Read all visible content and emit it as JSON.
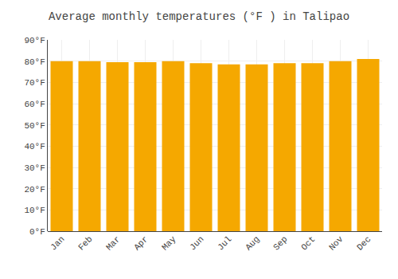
{
  "chart_data": {
    "type": "bar",
    "title": "Average monthly temperatures (°F ) in Talipao",
    "categories": [
      "Jan",
      "Feb",
      "Mar",
      "Apr",
      "May",
      "Jun",
      "Jul",
      "Aug",
      "Sep",
      "Oct",
      "Nov",
      "Dec"
    ],
    "values": [
      80,
      80,
      79.5,
      79.5,
      80,
      79,
      78.5,
      78.5,
      79,
      79,
      80,
      81
    ],
    "color": "#F5A800",
    "ylim": [
      0,
      90
    ],
    "yticks": [
      {
        "value": 0,
        "label": "0°F"
      },
      {
        "value": 10,
        "label": "10°F"
      },
      {
        "value": 20,
        "label": "20°F"
      },
      {
        "value": 30,
        "label": "30°F"
      },
      {
        "value": 40,
        "label": "40°F"
      },
      {
        "value": 50,
        "label": "50°F"
      },
      {
        "value": 60,
        "label": "60°F"
      },
      {
        "value": 70,
        "label": "70°F"
      },
      {
        "value": 80,
        "label": "80°F"
      },
      {
        "value": 90,
        "label": "90°F"
      }
    ],
    "grid": true
  }
}
